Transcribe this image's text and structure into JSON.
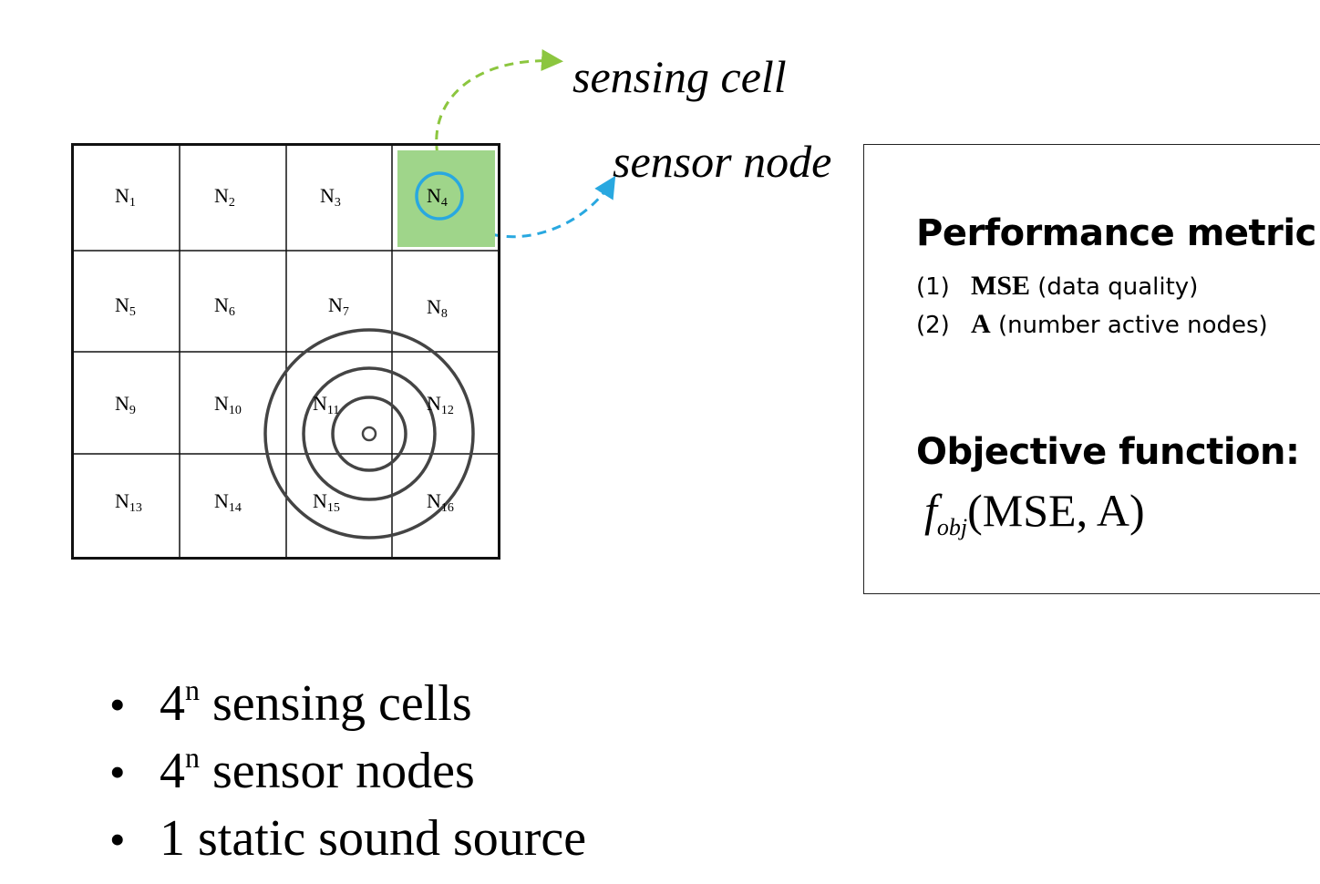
{
  "annotations": {
    "sensing_cell": "sensing cell",
    "sensor_node": "sensor node"
  },
  "grid": {
    "rows": 4,
    "cols": 4,
    "highlight_cell_index": 3,
    "cells": [
      {
        "base": "N",
        "sub": "1"
      },
      {
        "base": "N",
        "sub": "2"
      },
      {
        "base": "N",
        "sub": "3"
      },
      {
        "base": "N",
        "sub": "4"
      },
      {
        "base": "N",
        "sub": "5"
      },
      {
        "base": "N",
        "sub": "6"
      },
      {
        "base": "N",
        "sub": "7"
      },
      {
        "base": "N",
        "sub": "8"
      },
      {
        "base": "N",
        "sub": "9"
      },
      {
        "base": "N",
        "sub": "10"
      },
      {
        "base": "N",
        "sub": "11"
      },
      {
        "base": "N",
        "sub": "12"
      },
      {
        "base": "N",
        "sub": "13"
      },
      {
        "base": "N",
        "sub": "14"
      },
      {
        "base": "N",
        "sub": "15"
      },
      {
        "base": "N",
        "sub": "16"
      }
    ]
  },
  "panel": {
    "performance_heading": "Performance metric:",
    "metrics": [
      {
        "num": "(1)",
        "key": "MSE",
        "desc": "(data quality)"
      },
      {
        "num": "(2)",
        "key": "A",
        "desc": "(number active nodes)"
      }
    ],
    "objective_heading": "Objective function:",
    "formula": {
      "f": "f",
      "sub": "obj",
      "args": "(MSE, A)"
    }
  },
  "bullets": [
    {
      "base": "4",
      "sup": "n",
      "text": " sensing cells"
    },
    {
      "base": "4",
      "sup": "n",
      "text": " sensor nodes"
    },
    {
      "base": "1",
      "sup": "",
      "text": " static sound source"
    }
  ],
  "colors": {
    "highlight_cell": "#9fd58a",
    "sensing_arrow": "#8cc63f",
    "sensor_node": "#29a8e0",
    "rings": "#444444"
  }
}
